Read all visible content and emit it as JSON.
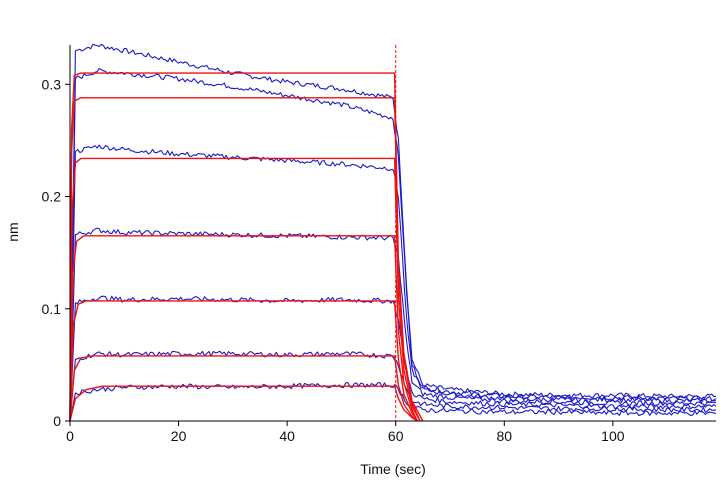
{
  "chart_data": {
    "type": "line",
    "title": "",
    "xlabel": "Time (sec)",
    "ylabel": "nm",
    "xlim": [
      0,
      119
    ],
    "ylim": [
      0,
      0.335
    ],
    "x_ticks": [
      0,
      20,
      40,
      60,
      80,
      100
    ],
    "y_ticks": [
      0,
      0.1,
      0.2,
      0.3
    ],
    "x_tick_labels": [
      "0",
      "20",
      "40",
      "60",
      "80",
      "100"
    ],
    "y_tick_labels": [
      "0",
      "0.1",
      "0.2",
      "0.3"
    ],
    "grid": false,
    "legend": "none",
    "association_end_marker_x": 60,
    "colors": {
      "measured": "#1a1acc",
      "fit": "#ee1111",
      "axis": "#000000"
    },
    "series": [
      {
        "kind": "measured",
        "points": [
          [
            0,
            0
          ],
          [
            1,
            0.33
          ],
          [
            5,
            0.335
          ],
          [
            10,
            0.33
          ],
          [
            20,
            0.32
          ],
          [
            30,
            0.31
          ],
          [
            40,
            0.302
          ],
          [
            50,
            0.296
          ],
          [
            59.5,
            0.288
          ],
          [
            60.5,
            0.25
          ],
          [
            62,
            0.12
          ],
          [
            63,
            0.055
          ],
          [
            65,
            0.032
          ],
          [
            70,
            0.028
          ],
          [
            80,
            0.024
          ],
          [
            90,
            0.023
          ],
          [
            100,
            0.023
          ],
          [
            110,
            0.022
          ],
          [
            119,
            0.022
          ]
        ]
      },
      {
        "kind": "measured",
        "points": [
          [
            0,
            0
          ],
          [
            1,
            0.305
          ],
          [
            5,
            0.312
          ],
          [
            10,
            0.31
          ],
          [
            20,
            0.305
          ],
          [
            30,
            0.298
          ],
          [
            40,
            0.29
          ],
          [
            50,
            0.282
          ],
          [
            59.5,
            0.27
          ],
          [
            60.5,
            0.235
          ],
          [
            62,
            0.115
          ],
          [
            63,
            0.05
          ],
          [
            65,
            0.03
          ],
          [
            70,
            0.026
          ],
          [
            80,
            0.022
          ],
          [
            90,
            0.021
          ],
          [
            100,
            0.021
          ],
          [
            110,
            0.02
          ],
          [
            119,
            0.02
          ]
        ]
      },
      {
        "kind": "measured",
        "points": [
          [
            0,
            0
          ],
          [
            1,
            0.24
          ],
          [
            5,
            0.245
          ],
          [
            10,
            0.242
          ],
          [
            20,
            0.238
          ],
          [
            30,
            0.235
          ],
          [
            40,
            0.232
          ],
          [
            50,
            0.229
          ],
          [
            59.5,
            0.225
          ],
          [
            60.5,
            0.2
          ],
          [
            62,
            0.09
          ],
          [
            63,
            0.045
          ],
          [
            65,
            0.028
          ],
          [
            70,
            0.024
          ],
          [
            80,
            0.02
          ],
          [
            90,
            0.019
          ],
          [
            100,
            0.019
          ],
          [
            110,
            0.018
          ],
          [
            119,
            0.018
          ]
        ]
      },
      {
        "kind": "measured",
        "points": [
          [
            0,
            0
          ],
          [
            1,
            0.166
          ],
          [
            5,
            0.17
          ],
          [
            10,
            0.168
          ],
          [
            20,
            0.167
          ],
          [
            30,
            0.166
          ],
          [
            40,
            0.165
          ],
          [
            50,
            0.164
          ],
          [
            59.5,
            0.163
          ],
          [
            60.5,
            0.145
          ],
          [
            62,
            0.07
          ],
          [
            63,
            0.035
          ],
          [
            65,
            0.024
          ],
          [
            70,
            0.021
          ],
          [
            80,
            0.018
          ],
          [
            90,
            0.017
          ],
          [
            100,
            0.016
          ],
          [
            110,
            0.016
          ],
          [
            119,
            0.016
          ]
        ]
      },
      {
        "kind": "measured",
        "points": [
          [
            0,
            0
          ],
          [
            1,
            0.105
          ],
          [
            5,
            0.11
          ],
          [
            10,
            0.108
          ],
          [
            20,
            0.109
          ],
          [
            30,
            0.108
          ],
          [
            40,
            0.107
          ],
          [
            50,
            0.108
          ],
          [
            59.5,
            0.107
          ],
          [
            60.5,
            0.09
          ],
          [
            62,
            0.045
          ],
          [
            63,
            0.025
          ],
          [
            65,
            0.02
          ],
          [
            70,
            0.017
          ],
          [
            80,
            0.015
          ],
          [
            90,
            0.014
          ],
          [
            100,
            0.013
          ],
          [
            110,
            0.013
          ],
          [
            119,
            0.013
          ]
        ]
      },
      {
        "kind": "measured",
        "points": [
          [
            0,
            0
          ],
          [
            1,
            0.055
          ],
          [
            5,
            0.06
          ],
          [
            10,
            0.059
          ],
          [
            20,
            0.06
          ],
          [
            30,
            0.06
          ],
          [
            40,
            0.059
          ],
          [
            50,
            0.06
          ],
          [
            59.5,
            0.058
          ],
          [
            60.5,
            0.05
          ],
          [
            62,
            0.028
          ],
          [
            63,
            0.018
          ],
          [
            65,
            0.015
          ],
          [
            70,
            0.013
          ],
          [
            80,
            0.012
          ],
          [
            90,
            0.011
          ],
          [
            100,
            0.011
          ],
          [
            110,
            0.01
          ],
          [
            119,
            0.01
          ]
        ]
      },
      {
        "kind": "measured",
        "points": [
          [
            0,
            0
          ],
          [
            1,
            0.025
          ],
          [
            5,
            0.028
          ],
          [
            10,
            0.03
          ],
          [
            20,
            0.031
          ],
          [
            30,
            0.03
          ],
          [
            40,
            0.031
          ],
          [
            50,
            0.032
          ],
          [
            59.5,
            0.032
          ],
          [
            60.5,
            0.028
          ],
          [
            62,
            0.017
          ],
          [
            63,
            0.012
          ],
          [
            65,
            0.01
          ],
          [
            70,
            0.009
          ],
          [
            80,
            0.008
          ],
          [
            90,
            0.008
          ],
          [
            100,
            0.007
          ],
          [
            110,
            0.007
          ],
          [
            119,
            0.007
          ]
        ]
      },
      {
        "kind": "fit",
        "points": [
          [
            0,
            0
          ],
          [
            0.3,
            0.26
          ],
          [
            0.8,
            0.308
          ],
          [
            2,
            0.31
          ],
          [
            59.8,
            0.31
          ],
          [
            60.5,
            0.14
          ],
          [
            61.5,
            0.06
          ],
          [
            63,
            0.018
          ],
          [
            65,
            0
          ]
        ]
      },
      {
        "kind": "fit",
        "points": [
          [
            0,
            0
          ],
          [
            0.3,
            0.24
          ],
          [
            0.8,
            0.285
          ],
          [
            2,
            0.288
          ],
          [
            59.8,
            0.288
          ],
          [
            60.5,
            0.13
          ],
          [
            61.5,
            0.055
          ],
          [
            63,
            0.016
          ],
          [
            64.5,
            0
          ]
        ]
      },
      {
        "kind": "fit",
        "points": [
          [
            0,
            0
          ],
          [
            0.4,
            0.19
          ],
          [
            1,
            0.23
          ],
          [
            2,
            0.234
          ],
          [
            59.8,
            0.234
          ],
          [
            60.5,
            0.11
          ],
          [
            61.5,
            0.045
          ],
          [
            63,
            0.013
          ],
          [
            64.5,
            0
          ]
        ]
      },
      {
        "kind": "fit",
        "points": [
          [
            0,
            0
          ],
          [
            0.5,
            0.13
          ],
          [
            1.2,
            0.16
          ],
          [
            2.5,
            0.165
          ],
          [
            59.8,
            0.165
          ],
          [
            60.5,
            0.08
          ],
          [
            61.5,
            0.034
          ],
          [
            63,
            0.01
          ],
          [
            64,
            0
          ]
        ]
      },
      {
        "kind": "fit",
        "points": [
          [
            0,
            0
          ],
          [
            0.6,
            0.085
          ],
          [
            1.5,
            0.104
          ],
          [
            3,
            0.107
          ],
          [
            59.8,
            0.107
          ],
          [
            60.5,
            0.055
          ],
          [
            61.5,
            0.024
          ],
          [
            63,
            0.007
          ],
          [
            64,
            0
          ]
        ]
      },
      {
        "kind": "fit",
        "points": [
          [
            0,
            0
          ],
          [
            0.8,
            0.045
          ],
          [
            2,
            0.056
          ],
          [
            4,
            0.058
          ],
          [
            59.8,
            0.058
          ],
          [
            60.5,
            0.032
          ],
          [
            61.5,
            0.015
          ],
          [
            63,
            0.004
          ],
          [
            64,
            0
          ]
        ]
      },
      {
        "kind": "fit",
        "points": [
          [
            0,
            0
          ],
          [
            1,
            0.02
          ],
          [
            3,
            0.028
          ],
          [
            6,
            0.031
          ],
          [
            59.8,
            0.031
          ],
          [
            60.5,
            0.02
          ],
          [
            61.5,
            0.01
          ],
          [
            63,
            0.003
          ],
          [
            64,
            0
          ]
        ]
      }
    ]
  }
}
